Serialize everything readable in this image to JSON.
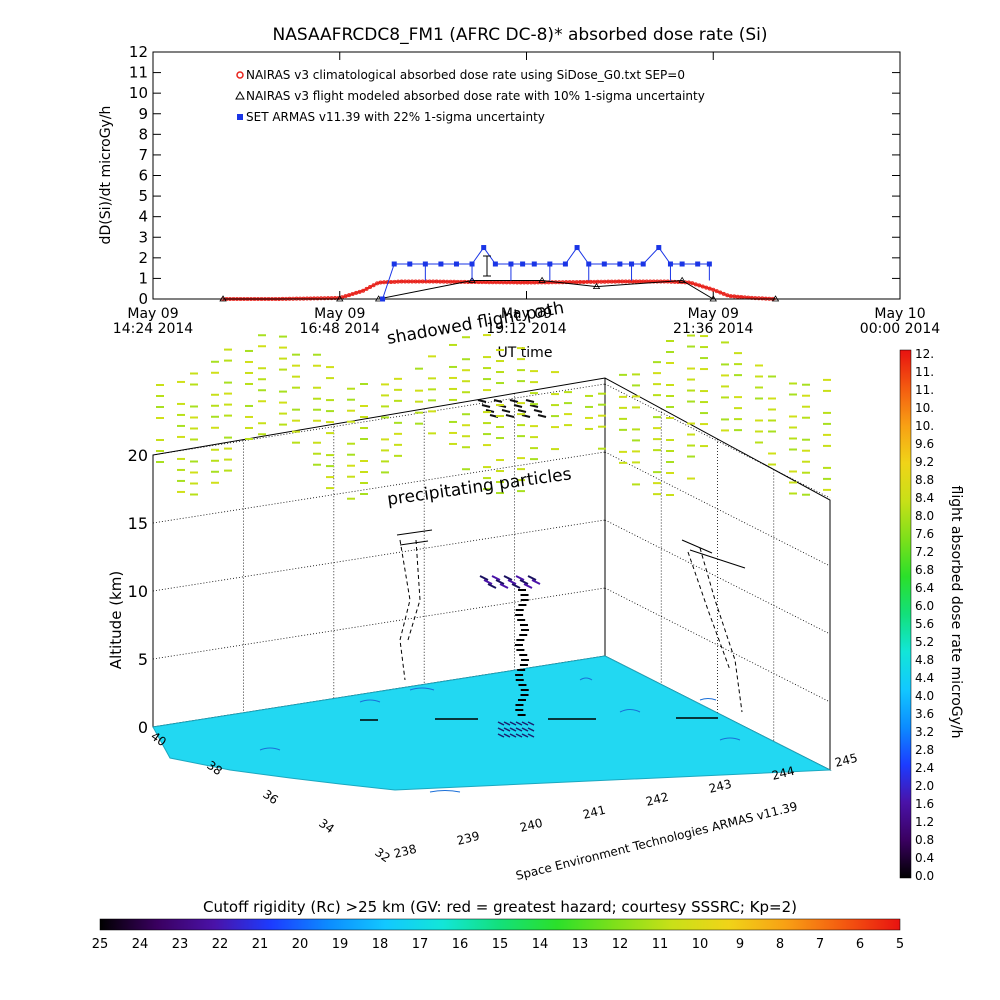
{
  "chart_data": [
    {
      "type": "line",
      "title": "NASAAFRCDC8_FM1 (AFRC DC-8)* absorbed dose rate (Si)",
      "ylabel": "dD(Si)/dt microGy/h",
      "xlabel": "UT time",
      "ylim": [
        0,
        12
      ],
      "yticks": [
        "0",
        "1",
        "2",
        "3",
        "4",
        "5",
        "6",
        "7",
        "8",
        "9",
        "10",
        "11",
        "12"
      ],
      "xrange_hours": [
        14.4,
        24.0
      ],
      "xticks": [
        {
          "hour": 14.4,
          "date": "May 09",
          "time": "14:24 2014"
        },
        {
          "hour": 16.8,
          "date": "May 09",
          "time": "16:48 2014"
        },
        {
          "hour": 19.2,
          "date": "May 09",
          "time": "19:12 2014"
        },
        {
          "hour": 21.6,
          "date": "May 09",
          "time": "21:36 2014"
        },
        {
          "hour": 24.0,
          "date": "May 10",
          "time": "00:00 2014"
        }
      ],
      "legend_position": "top-left",
      "series": [
        {
          "name": "NAIRAS v3 climatological absorbed dose rate using SiDose_G0.txt SEP=0",
          "color": "#e8231c",
          "marker": "circle",
          "x": [
            15.3,
            16.0,
            16.8,
            17.1,
            17.3,
            17.6,
            18.0,
            18.6,
            19.2,
            19.8,
            20.4,
            21.0,
            21.3,
            21.6,
            21.8,
            22.1,
            22.4
          ],
          "values": [
            0,
            0,
            0.05,
            0.4,
            0.8,
            0.85,
            0.85,
            0.82,
            0.8,
            0.82,
            0.85,
            0.85,
            0.8,
            0.45,
            0.15,
            0.05,
            0
          ]
        },
        {
          "name": "NAIRAS v3 flight modeled absorbed dose rate with 10% 1-sigma uncertainty",
          "color": "#000000",
          "marker": "triangle",
          "x": [
            15.3,
            16.8,
            17.3,
            18.5,
            19.4,
            20.1,
            21.2,
            21.6,
            22.4
          ],
          "values": [
            0,
            0,
            0,
            0.9,
            0.9,
            0.6,
            0.9,
            0,
            0
          ]
        },
        {
          "name": "SET ARMAS v11.39 with 22% 1-sigma uncertainty",
          "color": "#1a35e6",
          "marker": "square",
          "x": [
            17.35,
            17.5,
            17.7,
            17.9,
            18.1,
            18.3,
            18.5,
            18.65,
            18.8,
            19.0,
            19.15,
            19.3,
            19.5,
            19.7,
            19.85,
            20.0,
            20.2,
            20.4,
            20.55,
            20.7,
            20.9,
            21.05,
            21.2,
            21.4,
            21.55
          ],
          "values": [
            0,
            1.7,
            1.7,
            1.7,
            1.7,
            1.7,
            1.7,
            2.5,
            1.7,
            1.7,
            1.7,
            1.7,
            1.7,
            1.7,
            2.5,
            1.7,
            1.7,
            1.7,
            1.7,
            1.7,
            2.5,
            1.7,
            1.7,
            1.7,
            1.7
          ]
        }
      ]
    },
    {
      "type": "scatter",
      "subtype": "3d-flight-track",
      "zlabel": "Altitude (km)",
      "zlim": [
        0,
        20
      ],
      "zticks": [
        "0",
        "5",
        "10",
        "15",
        "20"
      ],
      "lat_ticks": [
        "40",
        "38",
        "36",
        "34",
        "32"
      ],
      "lon_ticks": [
        "238",
        "239",
        "240",
        "241",
        "242",
        "243",
        "244",
        "245"
      ],
      "xlabel": "Space Environment Technologies ARMAS v11.39",
      "annotations": [
        "shadowed flight path",
        "precipitating particles"
      ],
      "surface_color": "#22d8f2"
    },
    {
      "type": "heatmap",
      "subtype": "colorbar",
      "label": "flight absorbed dose rate microGy/h",
      "ticks": [
        "0.0",
        "0.4",
        "0.8",
        "1.2",
        "1.6",
        "2.0",
        "2.4",
        "2.8",
        "3.2",
        "3.6",
        "4.0",
        "4.4",
        "4.8",
        "5.2",
        "5.6",
        "6.0",
        "6.4",
        "6.8",
        "7.2",
        "7.6",
        "8.0",
        "8.4",
        "8.8",
        "9.2",
        "9.6",
        "10.",
        "10.",
        "11.",
        "11.",
        "12."
      ]
    },
    {
      "type": "heatmap",
      "subtype": "colorbar",
      "label": "Cutoff rigidity (Rc) >25 km (GV: red = greatest hazard; courtesy SSSRC; Kp=2)",
      "ticks": [
        "25",
        "24",
        "23",
        "22",
        "21",
        "20",
        "19",
        "18",
        "17",
        "16",
        "15",
        "14",
        "13",
        "12",
        "11",
        "10",
        "9",
        "8",
        "7",
        "6",
        "5"
      ]
    }
  ],
  "colors": {
    "rainbow": [
      "#000000",
      "#3a0060",
      "#4a12a8",
      "#1c3cff",
      "#0c8cff",
      "#12c8ff",
      "#12e6d8",
      "#13e07a",
      "#2be02a",
      "#7ee01a",
      "#c8e018",
      "#f0d418",
      "#f8a014",
      "#f45a10",
      "#e81210"
    ]
  }
}
